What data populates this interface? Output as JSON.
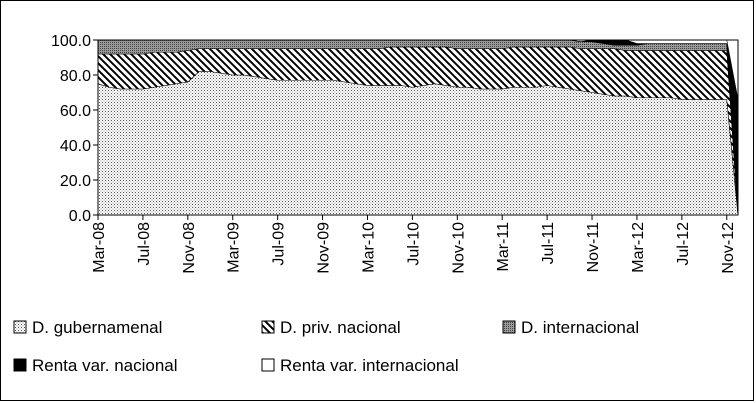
{
  "chart_data": {
    "type": "area",
    "stacked": true,
    "title": "",
    "xlabel": "",
    "ylabel": "",
    "ylim": [
      0,
      100
    ],
    "y_ticks": [
      "0.0",
      "20.0",
      "40.0",
      "60.0",
      "80.0",
      "100.0"
    ],
    "x_ticks": [
      "Mar-08",
      "Jul-08",
      "Nov-08",
      "Mar-09",
      "Jul-09",
      "Nov-09",
      "Mar-10",
      "Jul-10",
      "Nov-10",
      "Mar-11",
      "Jul-11",
      "Nov-11",
      "Mar-12",
      "Jul-12",
      "Nov-12"
    ],
    "x": [
      "Mar-08",
      "Apr-08",
      "May-08",
      "Jun-08",
      "Jul-08",
      "Aug-08",
      "Sep-08",
      "Oct-08",
      "Nov-08",
      "Dec-08",
      "Jan-09",
      "Feb-09",
      "Mar-09",
      "Apr-09",
      "May-09",
      "Jun-09",
      "Jul-09",
      "Aug-09",
      "Sep-09",
      "Oct-09",
      "Nov-09",
      "Dec-09",
      "Jan-10",
      "Feb-10",
      "Mar-10",
      "Apr-10",
      "May-10",
      "Jun-10",
      "Jul-10",
      "Aug-10",
      "Sep-10",
      "Oct-10",
      "Nov-10",
      "Dec-10",
      "Jan-11",
      "Feb-11",
      "Mar-11",
      "Apr-11",
      "May-11",
      "Jun-11",
      "Jul-11",
      "Aug-11",
      "Sep-11",
      "Oct-11",
      "Nov-11",
      "Dec-11",
      "Jan-12",
      "Feb-12",
      "Mar-12",
      "Apr-12",
      "May-12",
      "Jun-12",
      "Jul-12",
      "Aug-12",
      "Sep-12",
      "Oct-12",
      "Nov-12",
      "Dec-12"
    ],
    "series": [
      {
        "name": "D. gubernamenal",
        "pattern": "dots",
        "values": [
          75,
          73,
          72,
          72,
          72,
          73,
          74,
          75,
          76,
          82,
          82,
          81,
          80,
          80,
          79,
          78,
          77,
          77,
          77,
          77,
          77,
          77,
          76,
          75,
          74,
          74,
          74,
          74,
          73,
          74,
          75,
          74,
          73,
          73,
          72,
          72,
          72,
          73,
          73,
          73,
          74,
          73,
          72,
          71,
          70,
          69,
          68,
          68,
          67,
          67,
          67,
          67,
          66,
          66,
          66,
          66,
          66,
          0
        ]
      },
      {
        "name": "D. priv. nacional",
        "pattern": "diagonal",
        "values": [
          17,
          19,
          20,
          20,
          20,
          20,
          19,
          18,
          18,
          13,
          13,
          14,
          15,
          15,
          16,
          17,
          18,
          18,
          18,
          18,
          18,
          18,
          19,
          20,
          21,
          21,
          22,
          22,
          23,
          22,
          21,
          22,
          22,
          22,
          23,
          23,
          23,
          23,
          23,
          23,
          22,
          23,
          24,
          24,
          25,
          26,
          27,
          26,
          27,
          27,
          27,
          27,
          28,
          28,
          28,
          28,
          28,
          0
        ]
      },
      {
        "name": "D. internacional",
        "pattern": "dense",
        "values": [
          8,
          8,
          8,
          8,
          8,
          7,
          7,
          7,
          6,
          5,
          5,
          5,
          5,
          5,
          5,
          5,
          5,
          5,
          5,
          5,
          5,
          5,
          5,
          5,
          5,
          5,
          4,
          4,
          4,
          4,
          4,
          4,
          5,
          5,
          5,
          5,
          5,
          4,
          4,
          4,
          4,
          4,
          4,
          4,
          4,
          3,
          2,
          3,
          3,
          4,
          4,
          4,
          4,
          4,
          4,
          4,
          4,
          0
        ]
      },
      {
        "name": "Renta var. nacional",
        "pattern": "solid-black",
        "values": [
          0,
          0,
          0,
          0,
          0,
          0,
          0,
          0,
          0,
          0,
          0,
          0,
          0,
          0,
          0,
          0,
          0,
          0,
          0,
          0,
          0,
          0,
          0,
          0,
          0,
          0,
          0,
          0,
          0,
          0,
          0,
          0,
          0,
          0,
          0,
          0,
          0,
          0,
          0,
          0,
          0,
          0,
          0,
          0,
          1,
          2,
          3,
          3,
          1,
          0,
          0,
          0,
          0,
          0,
          0,
          0,
          0,
          66
        ]
      },
      {
        "name": "Renta var. internacional",
        "pattern": "white",
        "values": [
          0,
          0,
          0,
          0,
          0,
          0,
          0,
          0,
          0,
          0,
          0,
          0,
          0,
          0,
          0,
          0,
          0,
          0,
          0,
          0,
          0,
          0,
          0,
          0,
          0,
          0,
          0,
          0,
          0,
          0,
          0,
          0,
          0,
          0,
          0,
          0,
          0,
          0,
          0,
          0,
          0,
          0,
          0,
          0,
          0,
          0,
          0,
          0,
          2,
          2,
          2,
          2,
          2,
          2,
          2,
          2,
          2,
          0
        ]
      }
    ],
    "grid": false,
    "legend_position": "bottom"
  }
}
